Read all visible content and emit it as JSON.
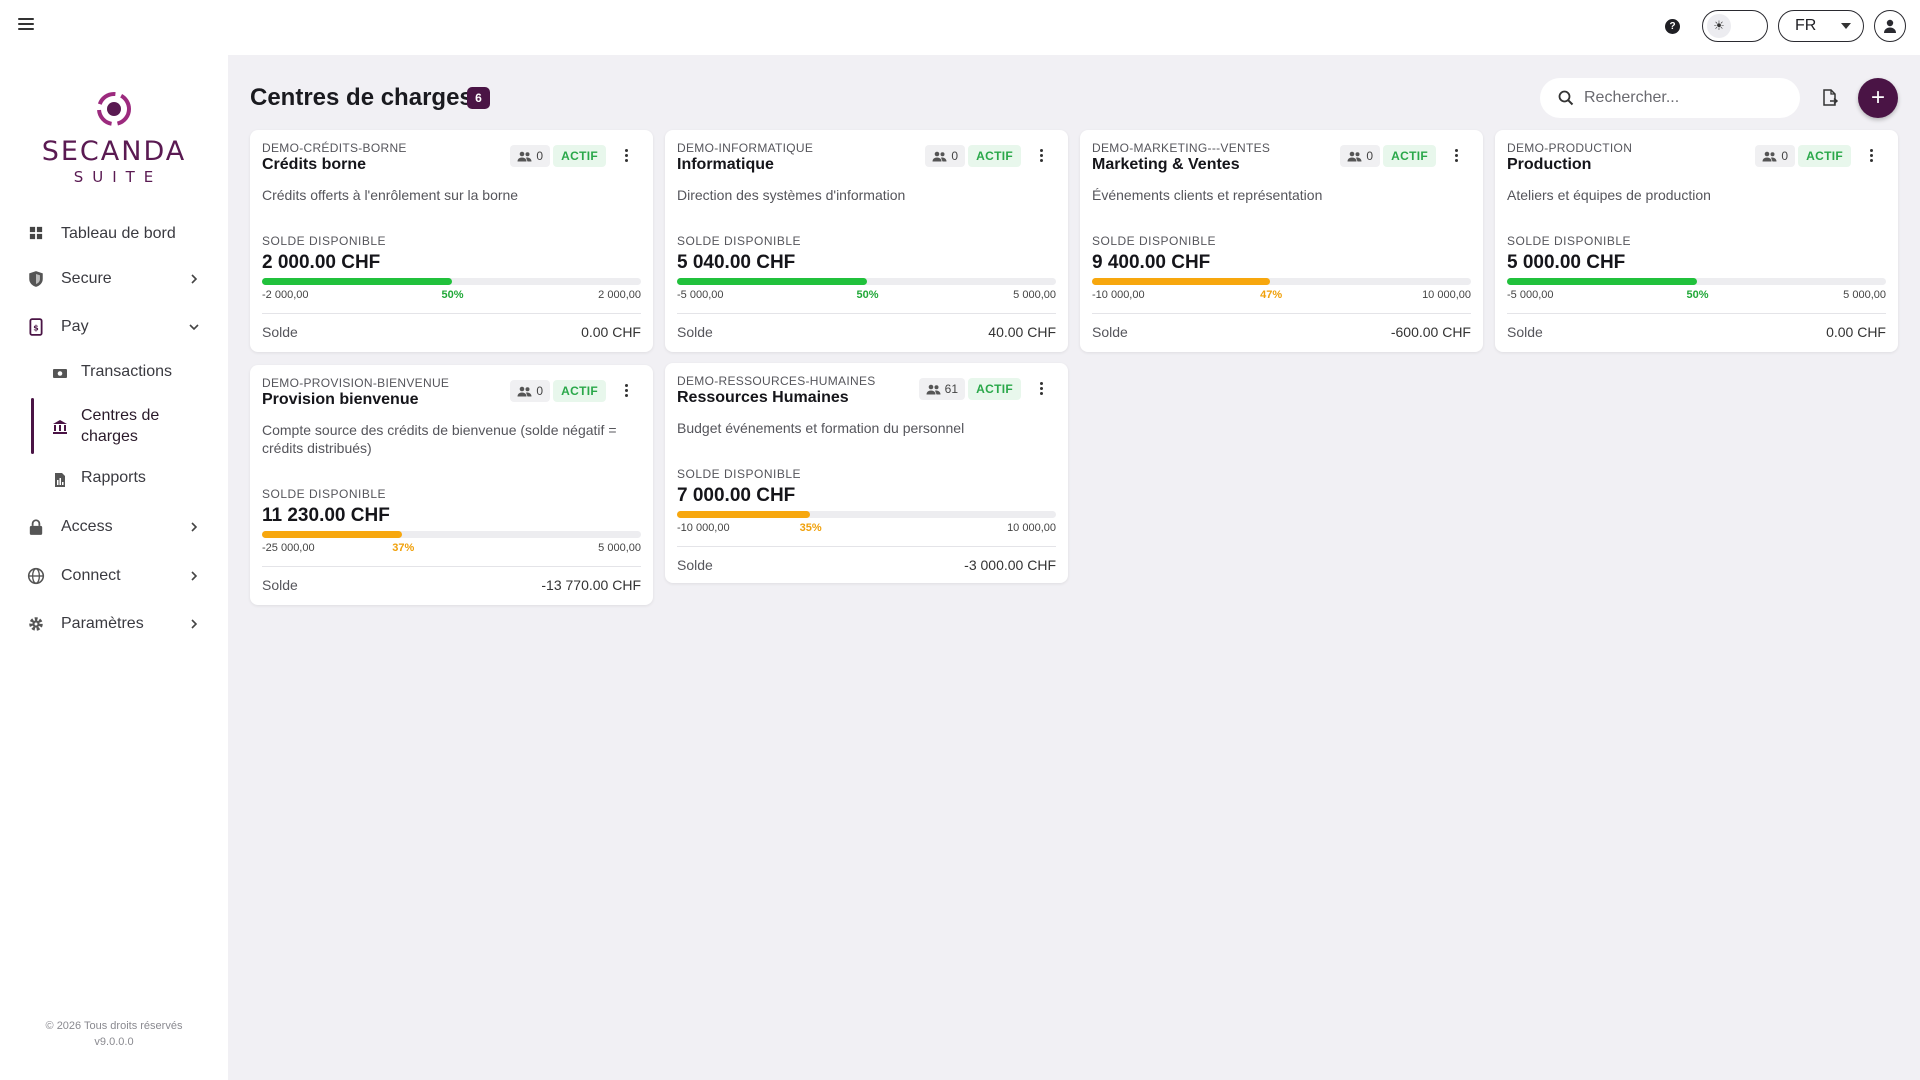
{
  "topbar": {
    "language": "FR"
  },
  "sidebar": {
    "logo_line1": "SECANDA",
    "logo_line2": "SUITE",
    "items": {
      "dashboard": "Tableau de bord",
      "secure": "Secure",
      "pay": "Pay",
      "transactions": "Transactions",
      "cost_centers": "Centres de charges",
      "reports": "Rapports",
      "access": "Access",
      "connect": "Connect",
      "settings": "Paramètres"
    },
    "footer_line1": "© 2026 Tous droits réservés",
    "footer_line2": "v9.0.0.0"
  },
  "header": {
    "title": "Centres de charges",
    "count": "6",
    "search_placeholder": "Rechercher..."
  },
  "cards": [
    {
      "code": "DEMO-CRÉDITS-BORNE",
      "name": "Crédits borne",
      "members": "0",
      "status": "ACTIF",
      "description": "Crédits offerts à l'enrôlement sur la borne",
      "balance_label": "SOLDE DISPONIBLE",
      "balance": "2 000.00 CHF",
      "progress": 0.5,
      "progress_label": "50%",
      "progress_color": "#21c13c",
      "min": "-2 000,00",
      "max": "2 000,00",
      "solde_label": "Solde",
      "solde": "0.00 CHF"
    },
    {
      "code": "DEMO-INFORMATIQUE",
      "name": "Informatique",
      "members": "0",
      "status": "ACTIF",
      "description": "Direction des systèmes d'information",
      "balance_label": "SOLDE DISPONIBLE",
      "balance": "5 040.00 CHF",
      "progress": 0.5,
      "progress_label": "50%",
      "progress_color": "#21c13c",
      "min": "-5 000,00",
      "max": "5 000,00",
      "solde_label": "Solde",
      "solde": "40.00 CHF"
    },
    {
      "code": "DEMO-MARKETING---VENTES",
      "name": "Marketing & Ventes",
      "members": "0",
      "status": "ACTIF",
      "description": "Événements clients et représentation",
      "balance_label": "SOLDE DISPONIBLE",
      "balance": "9 400.00 CHF",
      "progress": 0.47,
      "progress_label": "47%",
      "progress_color": "#f7a70e",
      "min": "-10 000,00",
      "max": "10 000,00",
      "solde_label": "Solde",
      "solde": "-600.00 CHF"
    },
    {
      "code": "DEMO-PRODUCTION",
      "name": "Production",
      "members": "0",
      "status": "ACTIF",
      "description": "Ateliers et équipes de production",
      "balance_label": "SOLDE DISPONIBLE",
      "balance": "5 000.00 CHF",
      "progress": 0.5,
      "progress_label": "50%",
      "progress_color": "#21c13c",
      "min": "-5 000,00",
      "max": "5 000,00",
      "solde_label": "Solde",
      "solde": "0.00 CHF"
    },
    {
      "code": "DEMO-PROVISION-BIENVENUE",
      "name": "Provision bienvenue",
      "members": "0",
      "status": "ACTIF",
      "description": "Compte source des crédits de bienvenue (solde négatif = crédits distribués)",
      "balance_label": "SOLDE DISPONIBLE",
      "balance": "11 230.00 CHF",
      "progress": 0.37,
      "progress_label": "37%",
      "progress_color": "#f7a70e",
      "min": "-25 000,00",
      "max": "5 000,00",
      "solde_label": "Solde",
      "solde": "-13 770.00 CHF"
    },
    {
      "code": "DEMO-RESSOURCES-HUMAINES",
      "name": "Ressources Humaines",
      "members": "61",
      "status": "ACTIF",
      "description": "Budget événements et formation du personnel",
      "balance_label": "SOLDE DISPONIBLE",
      "balance": "7 000.00 CHF",
      "progress": 0.35,
      "progress_label": "35%",
      "progress_color": "#f7a70e",
      "min": "-10 000,00",
      "max": "10 000,00",
      "solde_label": "Solde",
      "solde": "-3 000.00 CHF"
    }
  ]
}
